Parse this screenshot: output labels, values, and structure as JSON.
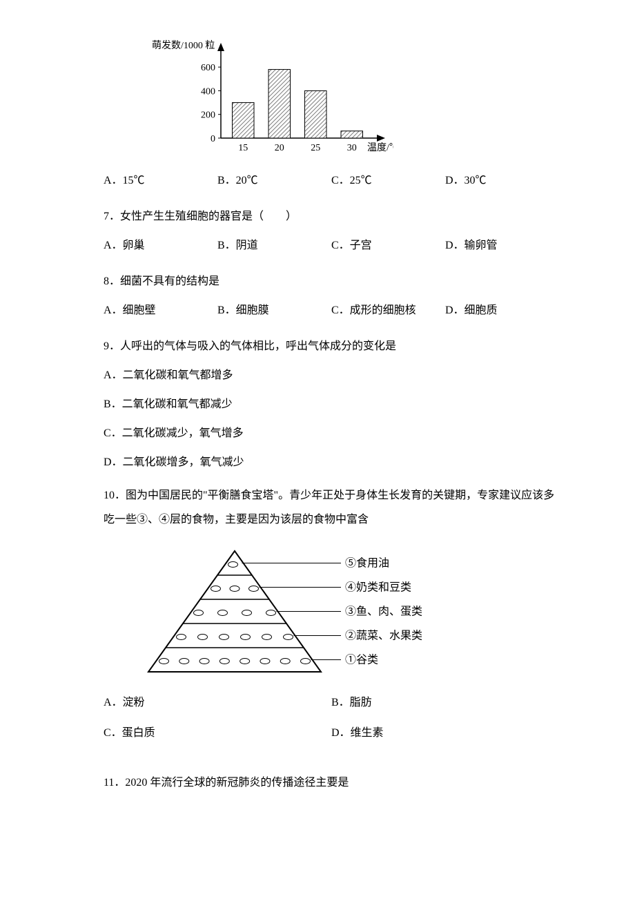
{
  "chart": {
    "type": "bar",
    "y_label": "萌发数/1000 粒",
    "x_label": "温度/℃",
    "categories": [
      "15",
      "20",
      "25",
      "30"
    ],
    "values": [
      300,
      580,
      400,
      60
    ],
    "y_ticks": [
      0,
      200,
      400,
      600
    ],
    "ylim": [
      0,
      700
    ],
    "bar_fill": "#ffffff",
    "bar_hatch": "#808080",
    "axis_color": "#000000",
    "bar_border": "#000000",
    "tick_fontsize": 14,
    "label_fontsize": 14,
    "bar_width_ratio": 0.6
  },
  "q6_options": {
    "a": "A．15℃",
    "b": "B．20℃",
    "c": "C．25℃",
    "d": "D．30℃"
  },
  "q7": {
    "text": "7．女性产生生殖细胞的器官是（　　）",
    "a": "A．卵巢",
    "b": "B．阴道",
    "c": "C．子宫",
    "d": "D．输卵管"
  },
  "q8": {
    "text": "8．细菌不具有的结构是",
    "a": "A．细胞壁",
    "b": "B．细胞膜",
    "c": "C．成形的细胞核",
    "d": "D．细胞质"
  },
  "q9": {
    "text": "9．人呼出的气体与吸入的气体相比，呼出气体成分的变化是",
    "a": "A．二氧化碳和氧气都增多",
    "b": "B．二氧化碳和氧气都减少",
    "c": "C．二氧化碳减少，氧气增多",
    "d": "D．二氧化碳增多，氧气减少"
  },
  "q10": {
    "text": "10．图为中国居民的\"平衡膳食宝塔\"。青少年正处于身体生长发育的关键期，专家建议应该多吃一些③、④层的食物，主要是因为该层的食物中富含",
    "a": "A．淀粉",
    "b": "B．脂肪",
    "c": "C．蛋白质",
    "d": "D．维生素"
  },
  "pyramid": {
    "type": "pyramid",
    "layers": [
      {
        "label": "⑤食用油"
      },
      {
        "label": "④奶类和豆类"
      },
      {
        "label": "③鱼、肉、蛋类"
      },
      {
        "label": "②蔬菜、水果类"
      },
      {
        "label": "①谷类"
      }
    ],
    "line_color": "#000000",
    "fill_color": "#ffffff",
    "label_fontsize": 16
  },
  "q11": {
    "text": "11．2020 年流行全球的新冠肺炎的传播途径主要是"
  }
}
